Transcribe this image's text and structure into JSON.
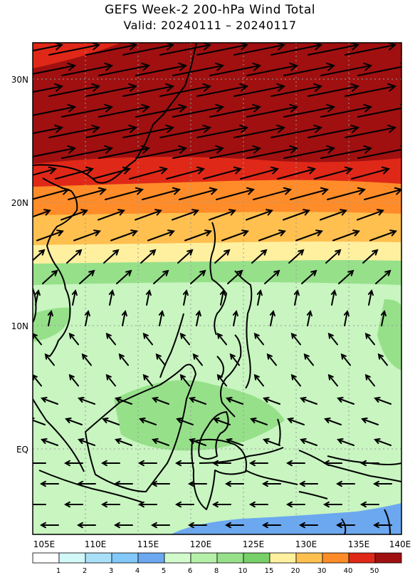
{
  "title": "GEFS Week-2 200-hPa Wind Total",
  "subtitle": "Valid: 20240111 – 20240117",
  "colors": {
    "land_outline": "#000000",
    "arrow": "#000000",
    "grid": "#999999"
  },
  "map": {
    "lon_range": [
      105,
      140
    ],
    "lat_range": [
      -8,
      32
    ],
    "lon_labels": [
      "105E",
      "110E",
      "115E",
      "120E",
      "125E",
      "130E",
      "135E",
      "140E"
    ],
    "lat_labels": [
      "30N",
      "20N",
      "10N",
      "EQ"
    ]
  },
  "colorbar": {
    "labels": [
      "1",
      "2",
      "3",
      "4",
      "5",
      "6",
      "8",
      "10",
      "15",
      "20",
      "30",
      "40",
      "50"
    ],
    "colors": [
      "#ffffff",
      "#d2f8f8",
      "#a9e0f8",
      "#82c8f8",
      "#6ca8f0",
      "#d2fbcc",
      "#b5f0a8",
      "#96e08a",
      "#78d068",
      "#fff0a0",
      "#ffc050",
      "#ff8c28",
      "#e02818",
      "#a01010"
    ]
  }
}
